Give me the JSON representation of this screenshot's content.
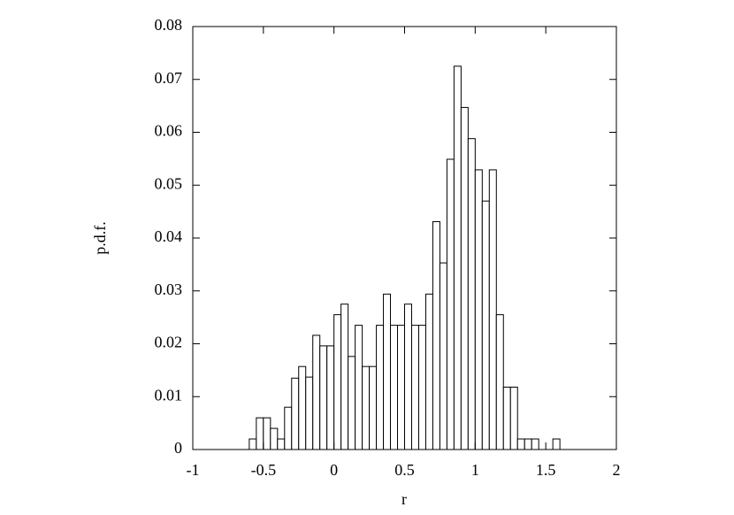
{
  "chart_data": {
    "type": "histogram",
    "x_label": "r",
    "y_label": "p.d.f.",
    "bins": [
      -0.6,
      -0.55,
      -0.5,
      -0.45,
      -0.4,
      -0.35,
      -0.3,
      -0.25,
      -0.2,
      -0.15,
      -0.1,
      -0.05,
      0,
      0.05,
      0.1,
      0.15,
      0.2,
      0.25,
      0.3,
      0.35,
      0.4,
      0.45,
      0.5,
      0.55,
      0.6,
      0.65,
      0.7,
      0.75,
      0.8,
      0.85,
      0.9,
      0.95,
      1,
      1.05,
      1.1,
      1.15,
      1.2,
      1.25,
      1.3,
      1.35,
      1.4,
      1.45,
      1.5,
      1.55,
      1.6
    ],
    "values": [
      0.002,
      0.006,
      0.006,
      0.004,
      0.002,
      0.008,
      0.0135,
      0.0157,
      0.0137,
      0.0216,
      0.0196,
      0.0196,
      0.0255,
      0.0275,
      0.0176,
      0.0235,
      0.0157,
      0.0157,
      0.0235,
      0.0294,
      0.0235,
      0.0235,
      0.0275,
      0.0235,
      0.0235,
      0.0294,
      0.0431,
      0.0353,
      0.0549,
      0.0725,
      0.0647,
      0.0588,
      0.0529,
      0.047,
      0.0529,
      0.0255,
      0.0118,
      0.0118,
      0.002,
      0.002,
      0.002,
      0,
      0,
      0.002
    ],
    "color": "#ffffff",
    "xlim": [
      -1,
      2
    ],
    "xticks": [
      -1,
      -0.5,
      0,
      0.5,
      1,
      1.5,
      2
    ],
    "ylim": [
      0,
      0.08
    ],
    "yticks": [
      0,
      0.01,
      0.02,
      0.03,
      0.04,
      0.05,
      0.06,
      0.07,
      0.08
    ]
  }
}
